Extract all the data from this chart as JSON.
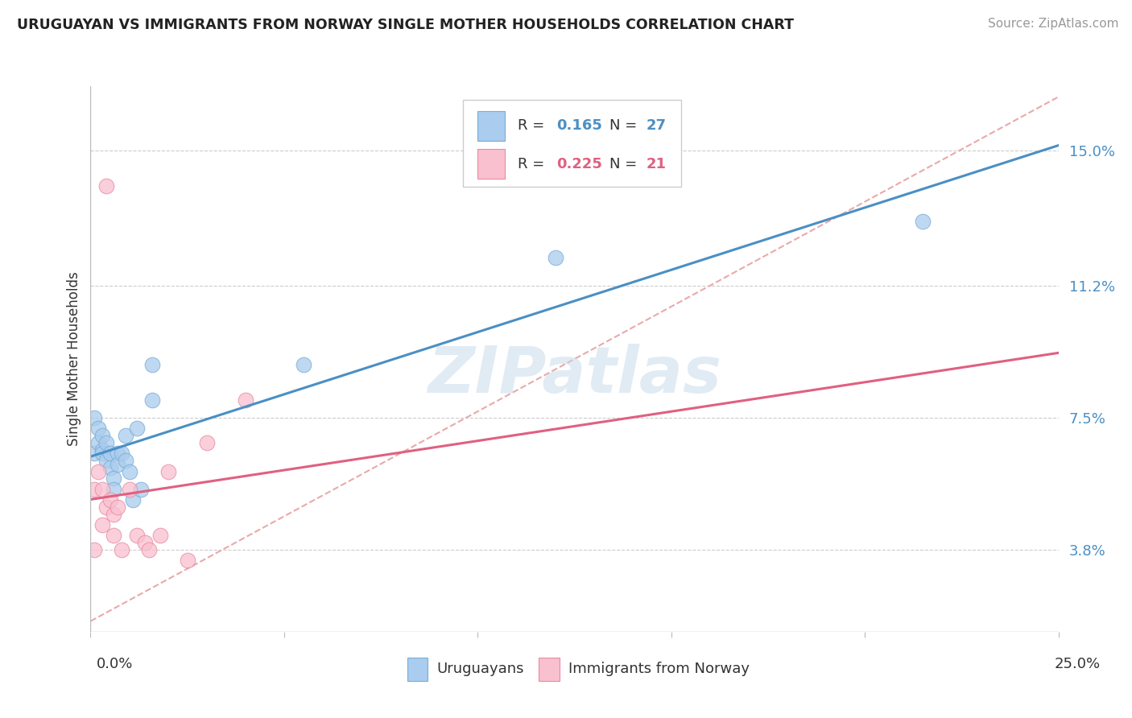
{
  "title": "URUGUAYAN VS IMMIGRANTS FROM NORWAY SINGLE MOTHER HOUSEHOLDS CORRELATION CHART",
  "source": "Source: ZipAtlas.com",
  "ylabel": "Single Mother Households",
  "ytick_labels": [
    "3.8%",
    "7.5%",
    "11.2%",
    "15.0%"
  ],
  "ytick_values": [
    0.038,
    0.075,
    0.112,
    0.15
  ],
  "xlim": [
    0.0,
    0.25
  ],
  "ylim": [
    0.015,
    0.168
  ],
  "blue_color": "#aaccee",
  "pink_color": "#f9c0cf",
  "blue_edge_color": "#7aadd4",
  "pink_edge_color": "#e88aa0",
  "blue_line_color": "#4a8fc4",
  "pink_line_color": "#e06080",
  "blue_text_color": "#4a8fc4",
  "pink_text_color": "#e06080",
  "diagonal_color": "#e8aaaa",
  "watermark_text": "ZIPatlas",
  "uruguayan_x": [
    0.001,
    0.001,
    0.002,
    0.002,
    0.003,
    0.003,
    0.003,
    0.004,
    0.004,
    0.005,
    0.005,
    0.006,
    0.006,
    0.007,
    0.007,
    0.008,
    0.009,
    0.009,
    0.01,
    0.011,
    0.012,
    0.013,
    0.016,
    0.016,
    0.055,
    0.12,
    0.215
  ],
  "uruguayan_y": [
    0.075,
    0.065,
    0.072,
    0.068,
    0.07,
    0.066,
    0.065,
    0.068,
    0.063,
    0.065,
    0.061,
    0.058,
    0.055,
    0.065,
    0.062,
    0.065,
    0.07,
    0.063,
    0.06,
    0.052,
    0.072,
    0.055,
    0.09,
    0.08,
    0.09,
    0.12,
    0.13
  ],
  "norway_x": [
    0.001,
    0.001,
    0.002,
    0.003,
    0.003,
    0.004,
    0.004,
    0.005,
    0.006,
    0.006,
    0.007,
    0.008,
    0.01,
    0.012,
    0.014,
    0.015,
    0.018,
    0.02,
    0.025,
    0.03,
    0.04
  ],
  "norway_y": [
    0.055,
    0.038,
    0.06,
    0.055,
    0.045,
    0.14,
    0.05,
    0.052,
    0.048,
    0.042,
    0.05,
    0.038,
    0.055,
    0.042,
    0.04,
    0.038,
    0.042,
    0.06,
    0.035,
    0.068,
    0.08
  ],
  "bottom_label1": "Uruguayans",
  "bottom_label2": "Immigrants from Norway",
  "legend_r_blue": "0.165",
  "legend_n_blue": "27",
  "legend_r_pink": "0.225",
  "legend_n_pink": "21",
  "xtick_positions": [
    0.0,
    0.05,
    0.1,
    0.15,
    0.2,
    0.25
  ]
}
